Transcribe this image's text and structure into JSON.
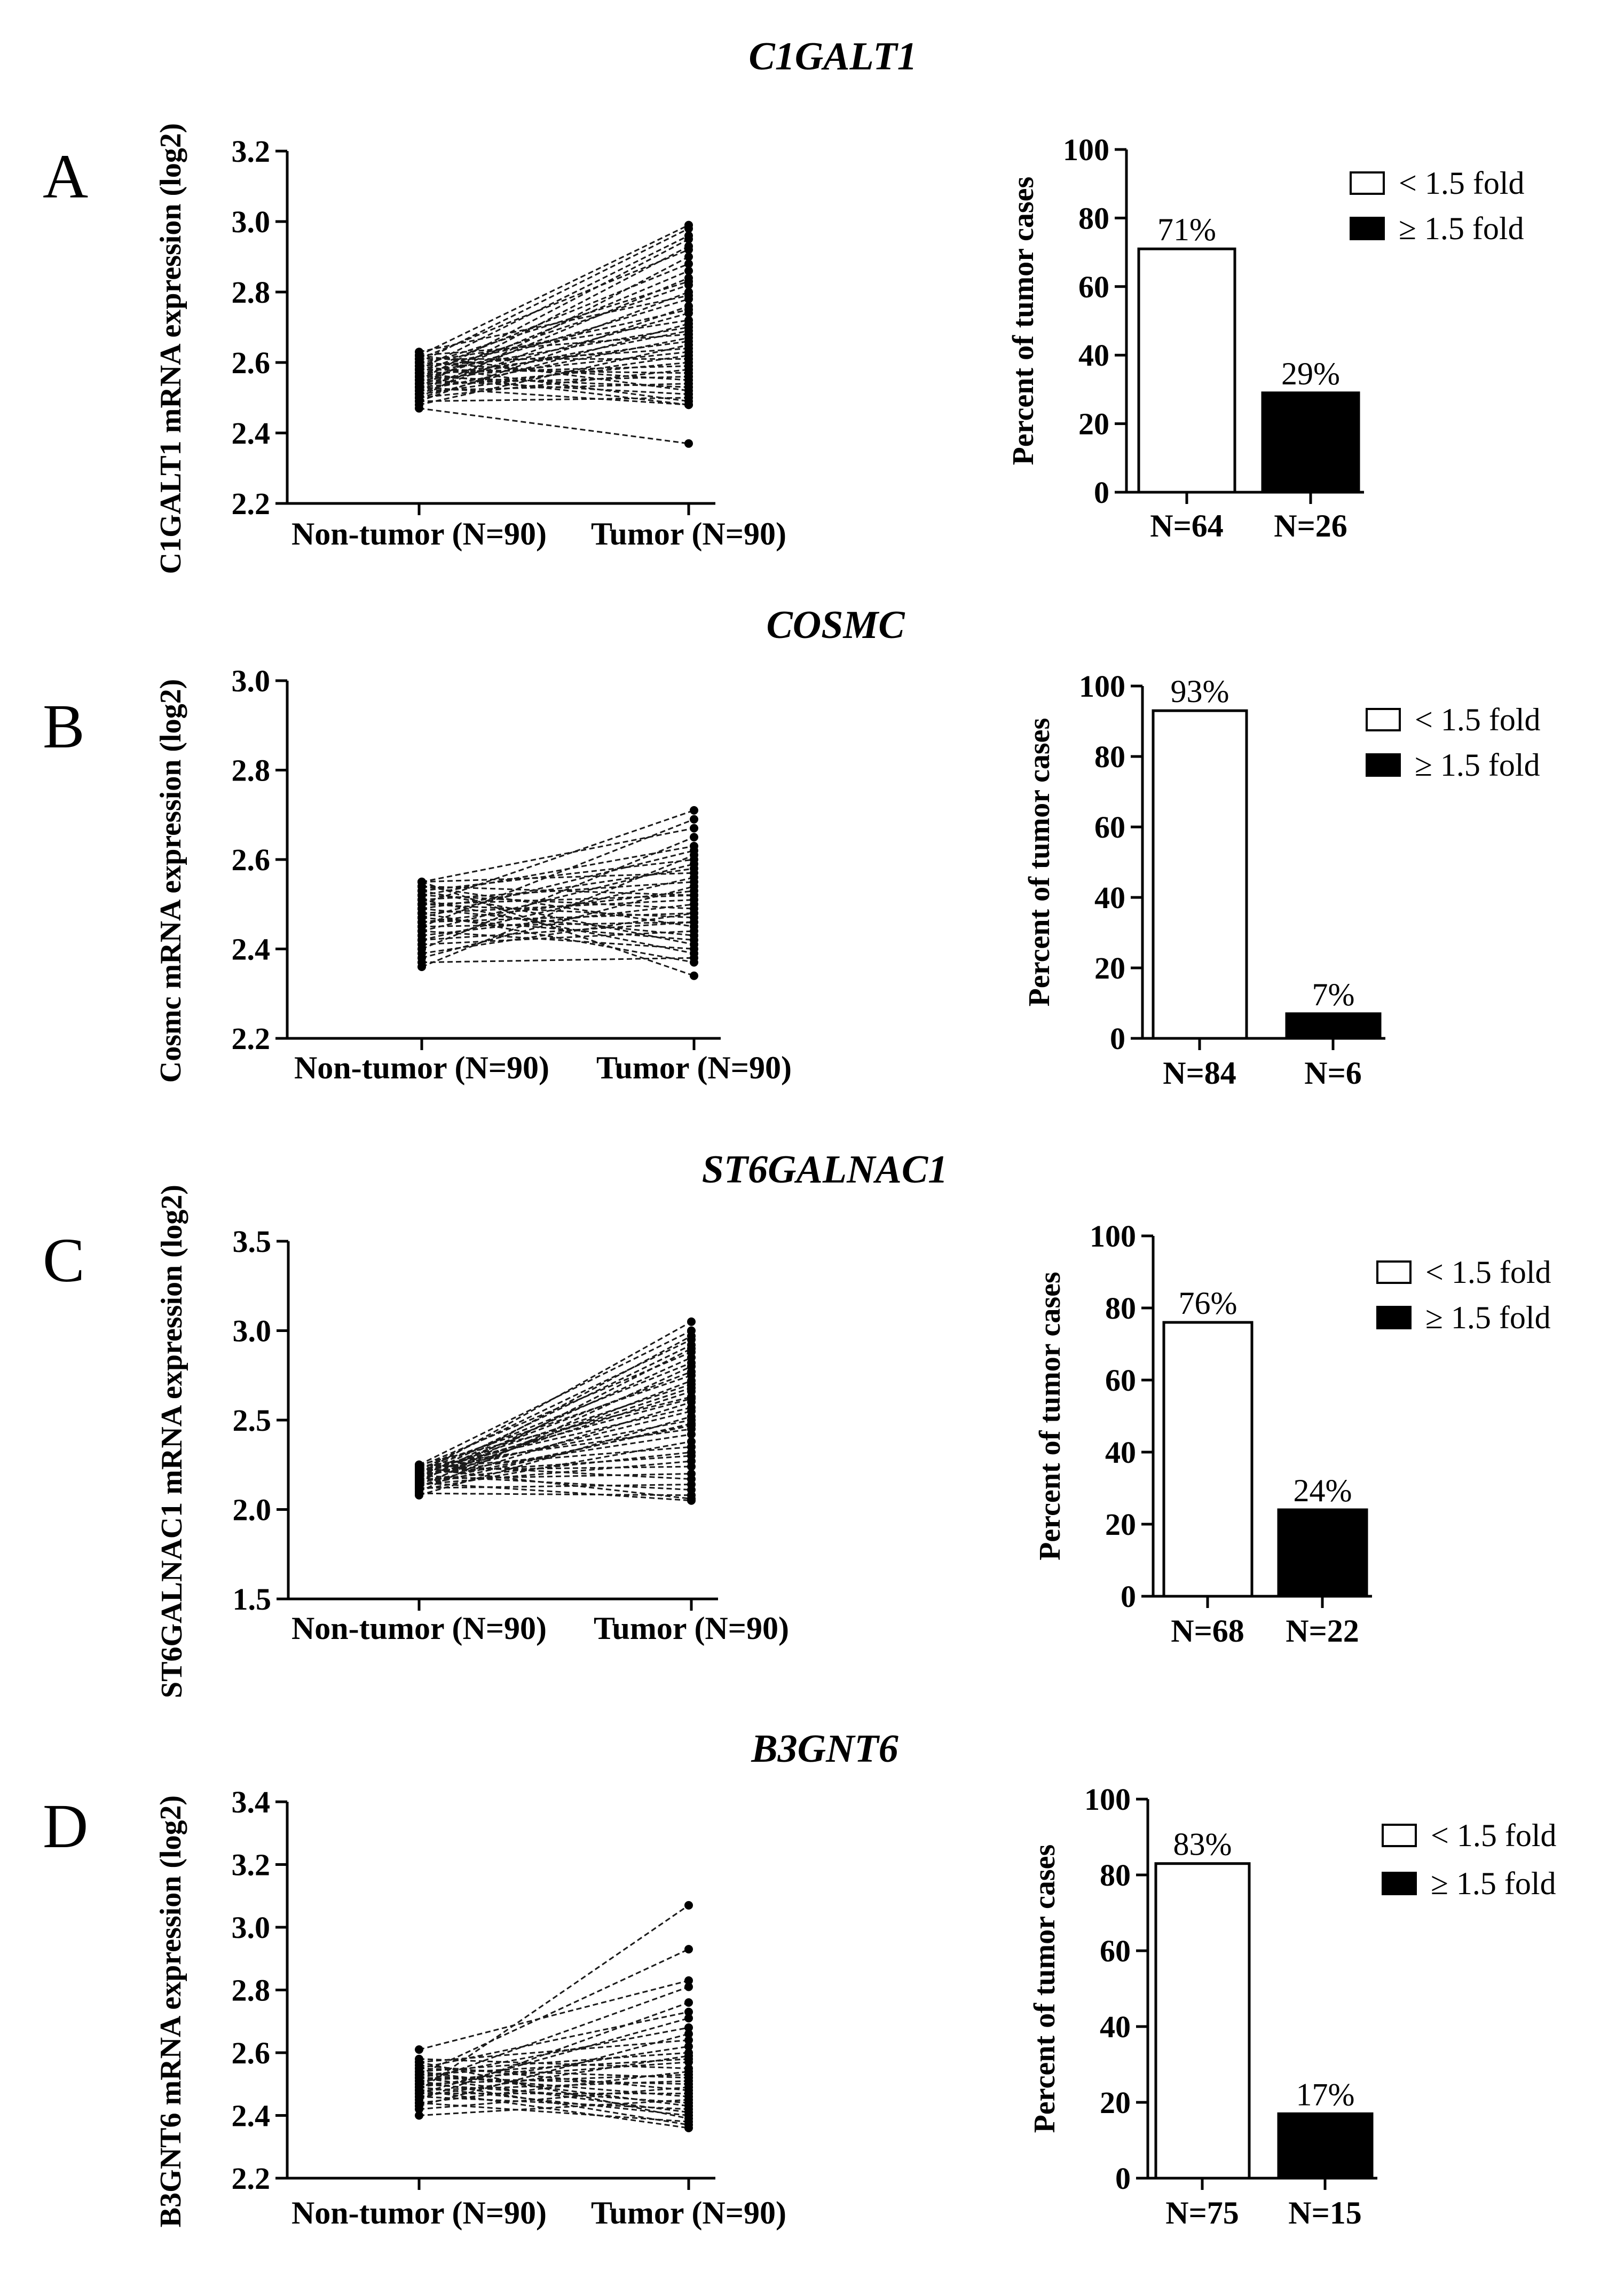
{
  "chart_data": [
    {
      "type": "line",
      "panel": "A",
      "title": "C1GALT1",
      "ylabel": "C1GALT1  mRNA expression (log2)",
      "xlabel": "",
      "categories": [
        "Non-tumor (N=90)",
        "Tumor (N=90)"
      ],
      "ylim": [
        2.2,
        3.2
      ],
      "yticks": [
        2.2,
        2.4,
        2.6,
        2.8,
        3.0,
        3.2
      ],
      "ytick_labels": [
        "2.2",
        "2.4",
        "2.6",
        "2.8",
        "3.0",
        "3.2"
      ],
      "pairs": [
        [
          2.47,
          2.37
        ],
        [
          2.62,
          2.99
        ],
        [
          2.6,
          2.98
        ],
        [
          2.58,
          2.96
        ],
        [
          2.55,
          2.95
        ],
        [
          2.53,
          2.93
        ],
        [
          2.61,
          2.92
        ],
        [
          2.5,
          2.9
        ],
        [
          2.57,
          2.88
        ],
        [
          2.54,
          2.86
        ],
        [
          2.52,
          2.84
        ],
        [
          2.59,
          2.83
        ],
        [
          2.56,
          2.82
        ],
        [
          2.51,
          2.8
        ],
        [
          2.63,
          2.79
        ],
        [
          2.55,
          2.78
        ],
        [
          2.49,
          2.76
        ],
        [
          2.58,
          2.75
        ],
        [
          2.53,
          2.74
        ],
        [
          2.6,
          2.72
        ],
        [
          2.5,
          2.71
        ],
        [
          2.57,
          2.7
        ],
        [
          2.54,
          2.69
        ],
        [
          2.62,
          2.68
        ],
        [
          2.52,
          2.67
        ],
        [
          2.56,
          2.66
        ],
        [
          2.48,
          2.65
        ],
        [
          2.59,
          2.64
        ],
        [
          2.55,
          2.63
        ],
        [
          2.51,
          2.62
        ],
        [
          2.61,
          2.61
        ],
        [
          2.53,
          2.6
        ],
        [
          2.57,
          2.59
        ],
        [
          2.5,
          2.58
        ],
        [
          2.58,
          2.57
        ],
        [
          2.54,
          2.56
        ],
        [
          2.6,
          2.55
        ],
        [
          2.52,
          2.54
        ],
        [
          2.56,
          2.53
        ],
        [
          2.62,
          2.52
        ],
        [
          2.55,
          2.51
        ],
        [
          2.49,
          2.5
        ],
        [
          2.59,
          2.49
        ],
        [
          2.53,
          2.48
        ],
        [
          2.57,
          2.48
        ]
      ],
      "bars": {
        "ylabel": "Percent of tumor cases",
        "ylim": [
          0,
          100
        ],
        "yticks": [
          0,
          20,
          40,
          60,
          80,
          100
        ],
        "ytick_labels": [
          "0",
          "20",
          "40",
          "60",
          "80",
          "100"
        ],
        "categories": [
          "N=64",
          "N=26"
        ],
        "values": [
          71,
          29
        ],
        "value_labels": [
          "71%",
          "29%"
        ],
        "fills": [
          "#ffffff",
          "#000000"
        ],
        "legend": [
          "< 1.5 fold",
          "≥ 1.5 fold"
        ]
      }
    },
    {
      "type": "line",
      "panel": "B",
      "title": "COSMC",
      "ylabel": "Cosmc  mRNA expression (log2)",
      "xlabel": "",
      "categories": [
        "Non-tumor (N=90)",
        "Tumor (N=90)"
      ],
      "ylim": [
        2.2,
        3.0
      ],
      "yticks": [
        2.2,
        2.4,
        2.6,
        2.8,
        3.0
      ],
      "ytick_labels": [
        "2.2",
        "2.4",
        "2.6",
        "2.8",
        "3.0"
      ],
      "pairs": [
        [
          2.5,
          2.71
        ],
        [
          2.45,
          2.69
        ],
        [
          2.55,
          2.67
        ],
        [
          2.4,
          2.65
        ],
        [
          2.52,
          2.63
        ],
        [
          2.47,
          2.62
        ],
        [
          2.36,
          2.61
        ],
        [
          2.53,
          2.6
        ],
        [
          2.44,
          2.59
        ],
        [
          2.49,
          2.58
        ],
        [
          2.55,
          2.57
        ],
        [
          2.42,
          2.56
        ],
        [
          2.51,
          2.55
        ],
        [
          2.38,
          2.54
        ],
        [
          2.46,
          2.53
        ],
        [
          2.54,
          2.52
        ],
        [
          2.48,
          2.51
        ],
        [
          2.43,
          2.5
        ],
        [
          2.52,
          2.49
        ],
        [
          2.39,
          2.48
        ],
        [
          2.5,
          2.47
        ],
        [
          2.45,
          2.46
        ],
        [
          2.54,
          2.45
        ],
        [
          2.41,
          2.44
        ],
        [
          2.49,
          2.43
        ],
        [
          2.47,
          2.42
        ],
        [
          2.53,
          2.41
        ],
        [
          2.44,
          2.4
        ],
        [
          2.51,
          2.39
        ],
        [
          2.37,
          2.38
        ],
        [
          2.48,
          2.37
        ],
        [
          2.55,
          2.34
        ],
        [
          2.42,
          2.46
        ],
        [
          2.5,
          2.52
        ],
        [
          2.46,
          2.48
        ]
      ],
      "bars": {
        "ylabel": "Percent of tumor cases",
        "ylim": [
          0,
          100
        ],
        "yticks": [
          0,
          20,
          40,
          60,
          80,
          100
        ],
        "ytick_labels": [
          "0",
          "20",
          "40",
          "60",
          "80",
          "100"
        ],
        "categories": [
          "N=84",
          "N=6"
        ],
        "values": [
          93,
          7
        ],
        "value_labels": [
          "93%",
          "7%"
        ],
        "fills": [
          "#ffffff",
          "#000000"
        ],
        "legend": [
          "< 1.5 fold",
          "≥ 1.5 fold"
        ]
      }
    },
    {
      "type": "line",
      "panel": "C",
      "title": "ST6GALNAC1",
      "ylabel": "ST6GALNAC1  mRNA expression (log2)",
      "xlabel": "",
      "categories": [
        "Non-tumor (N=90)",
        "Tumor (N=90)"
      ],
      "ylim": [
        1.5,
        3.5
      ],
      "yticks": [
        1.5,
        2.0,
        2.5,
        3.0,
        3.5
      ],
      "ytick_labels": [
        "1.5",
        "2.0",
        "2.5",
        "3.0",
        "3.5"
      ],
      "pairs": [
        [
          2.2,
          3.05
        ],
        [
          2.25,
          3.0
        ],
        [
          2.15,
          2.97
        ],
        [
          2.22,
          2.95
        ],
        [
          2.18,
          2.92
        ],
        [
          2.12,
          2.9
        ],
        [
          2.24,
          2.88
        ],
        [
          2.16,
          2.85
        ],
        [
          2.21,
          2.82
        ],
        [
          2.1,
          2.8
        ],
        [
          2.19,
          2.77
        ],
        [
          2.23,
          2.75
        ],
        [
          2.14,
          2.72
        ],
        [
          2.2,
          2.7
        ],
        [
          2.17,
          2.66
        ],
        [
          2.25,
          2.63
        ],
        [
          2.13,
          2.6
        ],
        [
          2.22,
          2.57
        ],
        [
          2.18,
          2.55
        ],
        [
          2.08,
          2.52
        ],
        [
          2.21,
          2.5
        ],
        [
          2.15,
          2.47
        ],
        [
          2.24,
          2.45
        ],
        [
          2.19,
          2.42
        ],
        [
          2.11,
          2.38
        ],
        [
          2.23,
          2.35
        ],
        [
          2.16,
          2.32
        ],
        [
          2.2,
          2.3
        ],
        [
          2.14,
          2.27
        ],
        [
          2.22,
          2.24
        ],
        [
          2.17,
          2.2
        ],
        [
          2.25,
          2.17
        ],
        [
          2.12,
          2.14
        ],
        [
          2.19,
          2.11
        ],
        [
          2.09,
          2.08
        ],
        [
          2.23,
          2.06
        ],
        [
          2.15,
          2.05
        ],
        [
          2.21,
          2.62
        ],
        [
          2.18,
          2.68
        ],
        [
          2.13,
          2.48
        ]
      ],
      "bars": {
        "ylabel": "Percent of tumor cases",
        "ylim": [
          0,
          100
        ],
        "yticks": [
          0,
          20,
          40,
          60,
          80,
          100
        ],
        "ytick_labels": [
          "0",
          "20",
          "40",
          "60",
          "80",
          "100"
        ],
        "categories": [
          "N=68",
          "N=22"
        ],
        "values": [
          76,
          24
        ],
        "value_labels": [
          "76%",
          "24%"
        ],
        "fills": [
          "#ffffff",
          "#000000"
        ],
        "legend": [
          "< 1.5 fold",
          "≥ 1.5 fold"
        ]
      }
    },
    {
      "type": "line",
      "panel": "D",
      "title": "B3GNT6",
      "ylabel": "B3GNT6  mRNA expression (log2)",
      "xlabel": "",
      "categories": [
        "Non-tumor (N=90)",
        "Tumor (N=90)"
      ],
      "ylim": [
        2.2,
        3.4
      ],
      "yticks": [
        2.2,
        2.4,
        2.6,
        2.8,
        3.0,
        3.2,
        3.4
      ],
      "ytick_labels": [
        "2.2",
        "2.4",
        "2.6",
        "2.8",
        "3.0",
        "3.2",
        "3.4"
      ],
      "pairs": [
        [
          2.48,
          3.07
        ],
        [
          2.53,
          2.93
        ],
        [
          2.61,
          2.83
        ],
        [
          2.5,
          2.81
        ],
        [
          2.45,
          2.76
        ],
        [
          2.55,
          2.73
        ],
        [
          2.47,
          2.71
        ],
        [
          2.52,
          2.68
        ],
        [
          2.43,
          2.66
        ],
        [
          2.57,
          2.64
        ],
        [
          2.49,
          2.62
        ],
        [
          2.54,
          2.6
        ],
        [
          2.46,
          2.59
        ],
        [
          2.51,
          2.57
        ],
        [
          2.58,
          2.55
        ],
        [
          2.44,
          2.54
        ],
        [
          2.5,
          2.53
        ],
        [
          2.55,
          2.52
        ],
        [
          2.48,
          2.51
        ],
        [
          2.52,
          2.5
        ],
        [
          2.42,
          2.49
        ],
        [
          2.56,
          2.48
        ],
        [
          2.47,
          2.47
        ],
        [
          2.53,
          2.46
        ],
        [
          2.4,
          2.45
        ],
        [
          2.5,
          2.44
        ],
        [
          2.54,
          2.43
        ],
        [
          2.46,
          2.42
        ],
        [
          2.52,
          2.41
        ],
        [
          2.49,
          2.4
        ],
        [
          2.57,
          2.39
        ],
        [
          2.44,
          2.38
        ],
        [
          2.51,
          2.37
        ],
        [
          2.48,
          2.36
        ],
        [
          2.53,
          2.58
        ]
      ],
      "bars": {
        "ylabel": "Percent of tumor cases",
        "ylim": [
          0,
          100
        ],
        "yticks": [
          0,
          20,
          40,
          60,
          80,
          100
        ],
        "ytick_labels": [
          "0",
          "20",
          "40",
          "60",
          "80",
          "100"
        ],
        "categories": [
          "N=75",
          "N=15"
        ],
        "values": [
          83,
          17
        ],
        "value_labels": [
          "83%",
          "17%"
        ],
        "fills": [
          "#ffffff",
          "#000000"
        ],
        "legend": [
          "< 1.5 fold",
          "≥ 1.5 fold"
        ]
      }
    }
  ]
}
